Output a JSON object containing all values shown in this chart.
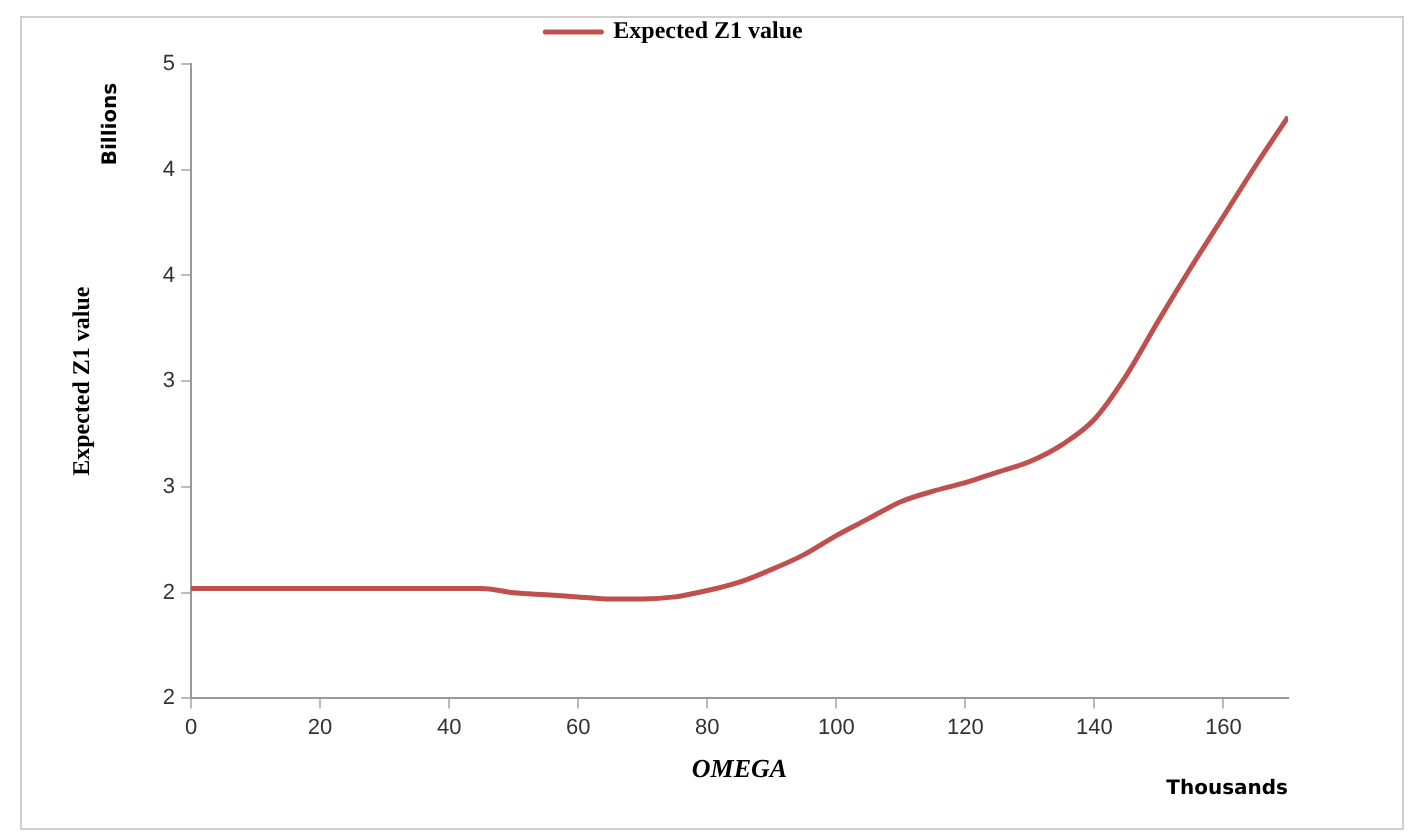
{
  "chart_data": {
    "type": "line",
    "xlabel": "OMEGA",
    "ylabel": "Expected Z1 value",
    "annotations": [
      "Billions",
      "Thousands"
    ],
    "x": [
      0,
      10,
      20,
      30,
      40,
      45,
      50,
      55,
      60,
      65,
      70,
      75,
      80,
      85,
      90,
      95,
      100,
      105,
      110,
      115,
      120,
      125,
      130,
      135,
      140,
      145,
      150,
      155,
      160,
      165,
      170
    ],
    "series": [
      {
        "name": "Expected Z1 value",
        "color": "#c0504d",
        "values": [
          2.02,
          2.02,
          2.02,
          2.02,
          2.02,
          2.02,
          2.0,
          1.99,
          1.98,
          1.97,
          1.97,
          1.98,
          2.01,
          2.05,
          2.11,
          2.18,
          2.27,
          2.35,
          2.43,
          2.48,
          2.52,
          2.57,
          2.62,
          2.7,
          2.82,
          3.03,
          3.29,
          3.54,
          3.78,
          4.02,
          4.25
        ]
      }
    ],
    "xlim": [
      0,
      170
    ],
    "xticks": [
      0,
      20,
      40,
      60,
      80,
      100,
      120,
      140,
      160
    ],
    "ylim": [
      1.5,
      4.5
    ],
    "yticks": [
      {
        "value": 1.5,
        "label": "2"
      },
      {
        "value": 2,
        "label": "2"
      },
      {
        "value": 2.5,
        "label": "3"
      },
      {
        "value": 3,
        "label": "3"
      },
      {
        "value": 3.5,
        "label": "4"
      },
      {
        "value": 4,
        "label": "4"
      },
      {
        "value": 4.5,
        "label": "5"
      }
    ],
    "grid": false,
    "legend": "top",
    "marker": "none",
    "line_style": "solid"
  }
}
